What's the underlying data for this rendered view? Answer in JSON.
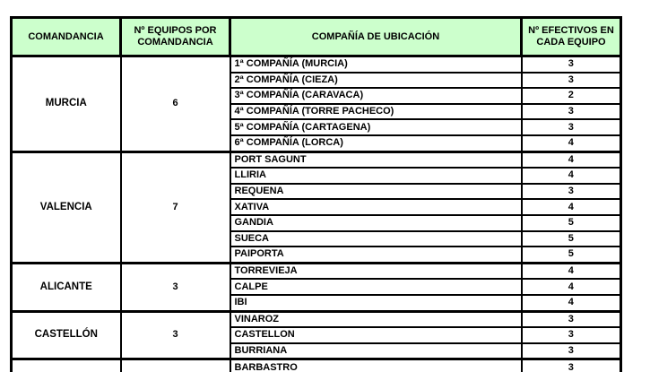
{
  "colors": {
    "header_bg": "#ccffcc",
    "border": "#000000",
    "text": "#000000",
    "page_bg": "#ffffff"
  },
  "table": {
    "headers": [
      "COMANDANCIA",
      "Nº EQUIPOS POR COMANDANCIA",
      "COMPAÑÍA DE UBICACIÓN",
      "Nº EFECTIVOS EN CADA EQUIPO"
    ],
    "groups": [
      {
        "comandancia": "MURCIA",
        "equipos_por_comandancia": "6",
        "companias": [
          {
            "nombre": "1ª COMPAÑÍA (MURCIA)",
            "efectivos": "3"
          },
          {
            "nombre": "2ª COMPAÑÍA (CIEZA)",
            "efectivos": "3"
          },
          {
            "nombre": "3ª COMPAÑÍA (CARAVACA)",
            "efectivos": "2"
          },
          {
            "nombre": "4ª COMPAÑÍA (TORRE PACHECO)",
            "efectivos": "3"
          },
          {
            "nombre": "5ª COMPAÑÍA (CARTAGENA)",
            "efectivos": "3"
          },
          {
            "nombre": "6ª COMPAÑÍA (LORCA)",
            "efectivos": "4"
          }
        ]
      },
      {
        "comandancia": "VALENCIA",
        "equipos_por_comandancia": "7",
        "companias": [
          {
            "nombre": "PORT SAGUNT",
            "efectivos": "4"
          },
          {
            "nombre": "LLIRIA",
            "efectivos": "4"
          },
          {
            "nombre": "REQUENA",
            "efectivos": "3"
          },
          {
            "nombre": "XATIVA",
            "efectivos": "4"
          },
          {
            "nombre": "GANDIA",
            "efectivos": "5"
          },
          {
            "nombre": "SUECA",
            "efectivos": "5"
          },
          {
            "nombre": "PAIPORTA",
            "efectivos": "5"
          }
        ]
      },
      {
        "comandancia": "ALICANTE",
        "equipos_por_comandancia": "3",
        "companias": [
          {
            "nombre": "TORREVIEJA",
            "efectivos": "4"
          },
          {
            "nombre": "CALPE",
            "efectivos": "4"
          },
          {
            "nombre": "IBI",
            "efectivos": "4"
          }
        ]
      },
      {
        "comandancia": "CASTELLÓN",
        "equipos_por_comandancia": "3",
        "companias": [
          {
            "nombre": "VINAROZ",
            "efectivos": "3"
          },
          {
            "nombre": "CASTELLON",
            "efectivos": "3"
          },
          {
            "nombre": "BURRIANA",
            "efectivos": "3"
          }
        ]
      }
    ],
    "partial_row": {
      "comandancia": "",
      "equipos_por_comandancia": "",
      "nombre": "BARBASTRO",
      "efectivos": "3"
    }
  }
}
